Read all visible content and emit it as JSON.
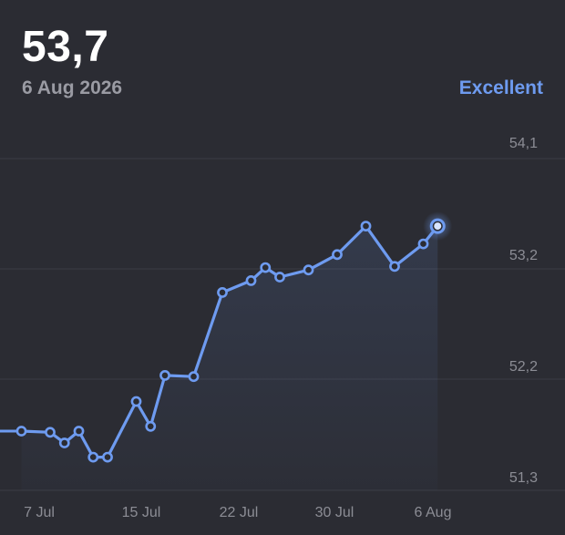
{
  "header": {
    "value": "53,7",
    "date": "6 Aug 2026",
    "rating": "Excellent",
    "rating_color": "#6e9bf0"
  },
  "colors": {
    "line": "#6e9bf0",
    "grid": "#3b3c44",
    "tick_text": "#8c8d95",
    "background": "#2b2c33"
  },
  "chart_data": {
    "type": "line",
    "title": "",
    "xlabel": "",
    "ylabel": "",
    "x_ticks": [
      "7 Jul",
      "15 Jul",
      "22 Jul",
      "30 Jul",
      "6 Aug"
    ],
    "y_ticks": [
      "54,1",
      "53,2",
      "52,2",
      "51,3"
    ],
    "ylim": [
      51.3,
      54.1
    ],
    "grid": true,
    "series": [
      {
        "points": [
          {
            "x": "2026-07-05",
            "y": 51.8
          },
          {
            "x": "2026-07-07",
            "y": 51.79
          },
          {
            "x": "2026-07-08",
            "y": 51.7
          },
          {
            "x": "2026-07-09",
            "y": 51.8
          },
          {
            "x": "2026-07-10",
            "y": 51.58
          },
          {
            "x": "2026-07-11",
            "y": 51.58
          },
          {
            "x": "2026-07-13",
            "y": 52.05
          },
          {
            "x": "2026-07-14",
            "y": 51.84
          },
          {
            "x": "2026-07-15",
            "y": 52.27
          },
          {
            "x": "2026-07-17",
            "y": 52.26
          },
          {
            "x": "2026-07-19",
            "y": 52.97
          },
          {
            "x": "2026-07-21",
            "y": 53.07
          },
          {
            "x": "2026-07-22",
            "y": 53.18
          },
          {
            "x": "2026-07-23",
            "y": 53.1
          },
          {
            "x": "2026-07-25",
            "y": 53.16
          },
          {
            "x": "2026-07-27",
            "y": 53.29
          },
          {
            "x": "2026-07-29",
            "y": 53.53
          },
          {
            "x": "2026-07-31",
            "y": 53.19
          },
          {
            "x": "2026-08-02",
            "y": 53.38
          },
          {
            "x": "2026-08-03",
            "y": 53.53
          }
        ]
      }
    ]
  }
}
